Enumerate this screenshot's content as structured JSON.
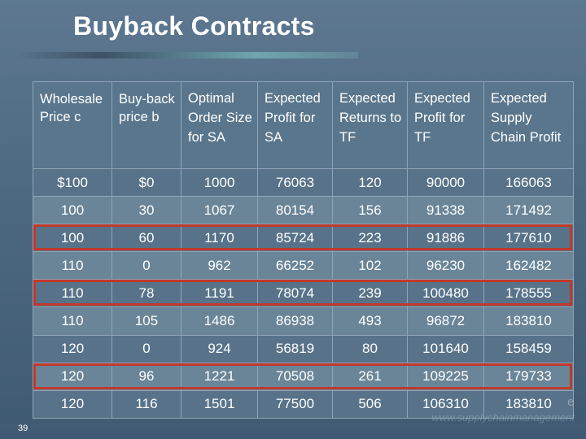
{
  "slide": {
    "title": "Buyback Contracts",
    "number": "39",
    "watermark_line1": "e",
    "watermark_line2": "www.supplychainmanagement"
  },
  "table": {
    "headers": [
      "Wholesale Price c",
      "Buy-back price b",
      "Optimal Order Size for SA",
      "Expected Profit for SA",
      "Expected Returns to TF",
      "Expected Profit for TF",
      "Expected Supply Chain Profit"
    ],
    "rows": [
      [
        "$100",
        "$0",
        "1000",
        "76063",
        "120",
        "90000",
        "166063"
      ],
      [
        "100",
        "30",
        "1067",
        "80154",
        "156",
        "91338",
        "171492"
      ],
      [
        "100",
        "60",
        "1170",
        "85724",
        "223",
        "91886",
        "177610"
      ],
      [
        "110",
        "0",
        "962",
        "66252",
        "102",
        "96230",
        "162482"
      ],
      [
        "110",
        "78",
        "1191",
        "78074",
        "239",
        "100480",
        "178555"
      ],
      [
        "110",
        "105",
        "1486",
        "86938",
        "493",
        "96872",
        "183810"
      ],
      [
        "120",
        "0",
        "924",
        "56819",
        "80",
        "101640",
        "158459"
      ],
      [
        "120",
        "96",
        "1221",
        "70508",
        "261",
        "109225",
        "179733"
      ],
      [
        "120",
        "116",
        "1501",
        "77500",
        "506",
        "106310",
        "183810"
      ]
    ],
    "highlighted_rows": [
      3,
      5,
      8
    ]
  },
  "colors": {
    "background": "#4e6a82",
    "cell": "#587389",
    "cell_alt": "#6a8598",
    "highlight_border": "#c0392b"
  }
}
